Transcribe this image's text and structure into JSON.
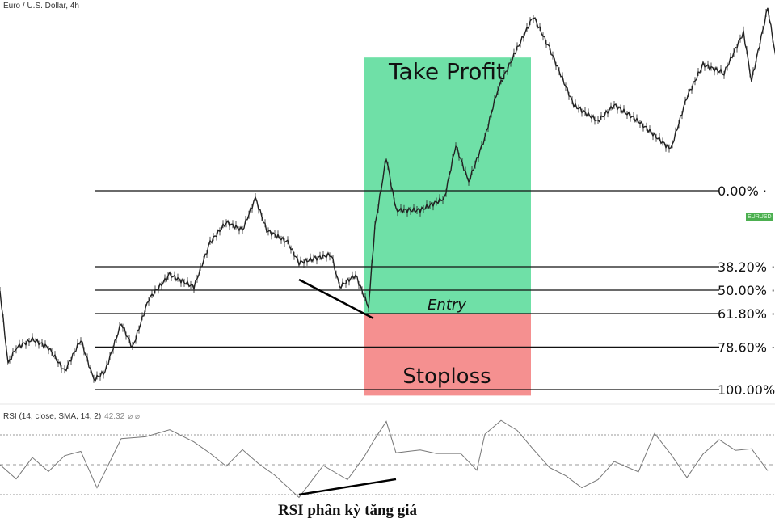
{
  "header": {
    "title": "Euro / U.S. Dollar, 4h"
  },
  "symbol_badge": "EURUSD",
  "rsi_indicator": {
    "label": "RSI (14, close, SMA, 14, 2)",
    "value": "42.32",
    "extra": "⌀ ⌀"
  },
  "annotations": {
    "take_profit": "Take Profit",
    "stoploss": "Stoploss",
    "entry": "Entry",
    "divergence": "RSI phân kỳ tăng giá"
  },
  "colors": {
    "take_profit_zone": "#3fd68a",
    "stoploss_zone": "#f26b6b",
    "price_line": "#222222",
    "rsi_line": "#777777"
  },
  "chart_data": [
    {
      "type": "line",
      "title": "Euro / U.S. Dollar, 4h",
      "price_units": "fibonacci retracement %",
      "fib_levels": [
        {
          "label": "0.00%",
          "level": 0
        },
        {
          "label": "38.20%",
          "level": 38.2
        },
        {
          "label": "50.00%",
          "level": 50
        },
        {
          "label": "61.80%",
          "level": 61.8
        },
        {
          "label": "78.60%",
          "level": 78.6
        },
        {
          "label": "100.00%",
          "level": 100
        }
      ],
      "zones": {
        "take_profit": {
          "from": 61.8,
          "to": -67
        },
        "stoploss": {
          "from": 61.8,
          "to": 103
        }
      },
      "price": [
        [
          0,
          50.4
        ],
        [
          2.5,
          87
        ],
        [
          5,
          78.9
        ],
        [
          10,
          74.8
        ],
        [
          15,
          78.9
        ],
        [
          20,
          91
        ],
        [
          25,
          74.8
        ],
        [
          29,
          95.1
        ],
        [
          32.5,
          91
        ],
        [
          37.5,
          66.7
        ],
        [
          41,
          78.9
        ],
        [
          46,
          54.5
        ],
        [
          52.5,
          42.3
        ],
        [
          60,
          48.4
        ],
        [
          65,
          26
        ],
        [
          70,
          15.9
        ],
        [
          75,
          19.9
        ],
        [
          79,
          3.7
        ],
        [
          82.5,
          19.9
        ],
        [
          89,
          26
        ],
        [
          92.5,
          36.2
        ],
        [
          97.5,
          34.1
        ],
        [
          102.5,
          32.1
        ],
        [
          105,
          48.4
        ],
        [
          110,
          42.3
        ],
        [
          114,
          58.5
        ],
        [
          116,
          17.9
        ],
        [
          119.5,
          -16.7
        ],
        [
          122.5,
          9.8
        ],
        [
          130,
          9.8
        ],
        [
          137.5,
          3.7
        ],
        [
          141,
          -22.8
        ],
        [
          145,
          -4.5
        ],
        [
          150,
          -26.8
        ],
        [
          154,
          -51.2
        ],
        [
          160,
          -71.5
        ],
        [
          165,
          -87.8
        ],
        [
          170,
          -71.5
        ],
        [
          177.5,
          -43.1
        ],
        [
          185,
          -35
        ],
        [
          190,
          -43.1
        ],
        [
          197.5,
          -35
        ],
        [
          207.5,
          -20.7
        ],
        [
          212.5,
          -47.2
        ],
        [
          217.5,
          -63.4
        ],
        [
          224,
          -59.3
        ],
        [
          230,
          -79.7
        ],
        [
          232.5,
          -55.3
        ],
        [
          237.5,
          -91.9
        ],
        [
          240,
          -67.5
        ]
      ],
      "price_divergence_line": [
        [
          92.5,
          44.7
        ],
        [
          115.5,
          64.2
        ]
      ]
    },
    {
      "type": "line",
      "title": "RSI (14, close, SMA, 14, 2)",
      "bands": [
        70,
        50,
        30
      ],
      "rsi": [
        [
          0,
          50
        ],
        [
          5,
          41.9
        ],
        [
          10,
          52.7
        ],
        [
          15,
          47.3
        ],
        [
          20,
          55.4
        ],
        [
          25,
          58.1
        ],
        [
          30,
          36.5
        ],
        [
          37.5,
          66.2
        ],
        [
          45,
          68.9
        ],
        [
          52.5,
          74.3
        ],
        [
          60,
          63.5
        ],
        [
          65,
          58.1
        ],
        [
          70,
          50
        ],
        [
          75,
          58.1
        ],
        [
          80,
          52.7
        ],
        [
          85,
          41.9
        ],
        [
          92.5,
          30
        ],
        [
          100,
          47.3
        ],
        [
          107.5,
          41.9
        ],
        [
          112.5,
          52.7
        ],
        [
          116,
          68.9
        ],
        [
          119.5,
          79.7
        ],
        [
          122.5,
          58.1
        ],
        [
          130,
          60.8
        ],
        [
          135,
          58.1
        ],
        [
          142.5,
          58.1
        ],
        [
          147.5,
          47.3
        ],
        [
          150,
          68.9
        ],
        [
          155,
          79.7
        ],
        [
          160,
          74.3
        ],
        [
          165,
          58.1
        ],
        [
          170,
          50
        ],
        [
          175,
          41.9
        ],
        [
          180,
          33.8
        ],
        [
          185,
          41.9
        ],
        [
          190,
          50
        ],
        [
          197.5,
          47.3
        ],
        [
          202.5,
          68.9
        ],
        [
          207.5,
          58.1
        ],
        [
          212.5,
          41.9
        ],
        [
          217.5,
          55.4
        ],
        [
          222.5,
          68.9
        ],
        [
          227.5,
          58.1
        ],
        [
          232.5,
          60.8
        ],
        [
          237.5,
          47.3
        ]
      ],
      "rsi_divergence_line": [
        [
          92.5,
          30
        ],
        [
          122.5,
          40.3
        ]
      ]
    }
  ]
}
